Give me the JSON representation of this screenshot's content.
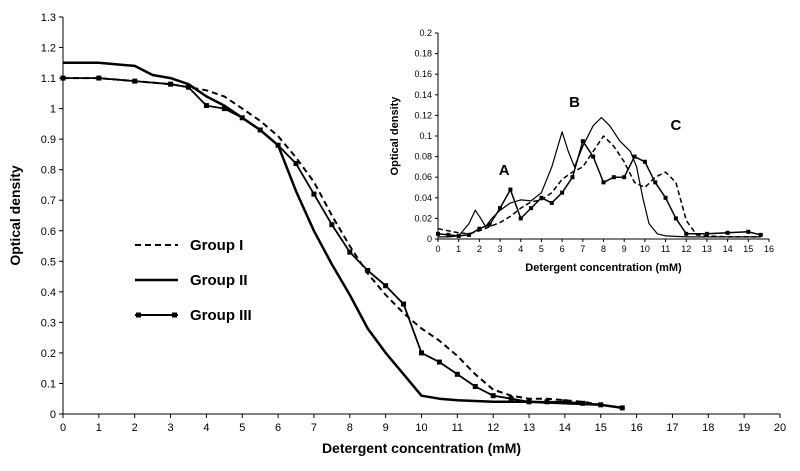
{
  "chart_data": [
    {
      "type": "line",
      "xlabel": "Detergent concentration (mM)",
      "ylabel": "Optical density",
      "xlim": [
        0,
        20
      ],
      "ylim": [
        0,
        1.3
      ],
      "x_ticks": [
        "0",
        "1",
        "2",
        "3",
        "4",
        "5",
        "6",
        "7",
        "8",
        "9",
        "10",
        "11",
        "12",
        "13",
        "14",
        "15",
        "16",
        "17",
        "18",
        "19",
        "20"
      ],
      "y_ticks": [
        "0",
        "0.1",
        "0.2",
        "0.3",
        "0.4",
        "0.5",
        "0.6",
        "0.7",
        "0.8",
        "0.9",
        "1",
        "1.1",
        "1.2",
        "1.3"
      ],
      "legend_position": "left-middle",
      "series": [
        {
          "name": "Group I",
          "style": "dashed",
          "color": "#000000",
          "x": [
            0,
            1,
            2,
            3,
            3.5,
            4,
            4.5,
            5,
            5.5,
            6,
            6.5,
            7,
            7.5,
            8,
            8.5,
            9,
            9.5,
            10,
            10.5,
            11,
            11.5,
            12,
            12.5,
            13,
            13.5,
            14,
            14.5,
            15,
            15.6
          ],
          "y": [
            1.1,
            1.1,
            1.09,
            1.08,
            1.07,
            1.06,
            1.04,
            1.0,
            0.96,
            0.91,
            0.84,
            0.76,
            0.65,
            0.55,
            0.46,
            0.39,
            0.33,
            0.28,
            0.24,
            0.19,
            0.13,
            0.08,
            0.06,
            0.05,
            0.05,
            0.045,
            0.04,
            0.03,
            0.02
          ]
        },
        {
          "name": "Group II",
          "style": "solid",
          "color": "#000000",
          "x": [
            0,
            1,
            2,
            2.5,
            3,
            3.5,
            4,
            4.5,
            5,
            5.5,
            6,
            6.5,
            7,
            7.5,
            8,
            8.5,
            9,
            9.5,
            10,
            10.5,
            11,
            12,
            13,
            14,
            15,
            15.6
          ],
          "y": [
            1.15,
            1.15,
            1.14,
            1.11,
            1.1,
            1.08,
            1.04,
            1.01,
            0.97,
            0.93,
            0.88,
            0.73,
            0.6,
            0.49,
            0.39,
            0.28,
            0.2,
            0.13,
            0.06,
            0.05,
            0.045,
            0.04,
            0.04,
            0.035,
            0.03,
            0.02
          ]
        },
        {
          "name": "Group III",
          "style": "solid-square-markers",
          "color": "#000000",
          "x": [
            0,
            1,
            2,
            3,
            3.5,
            4,
            4.5,
            5,
            5.5,
            6,
            6.5,
            7,
            7.5,
            8,
            8.5,
            9,
            9.5,
            10,
            10.5,
            11,
            11.5,
            12,
            12.5,
            13,
            13.5,
            14,
            14.5,
            15,
            15.6
          ],
          "y": [
            1.1,
            1.1,
            1.09,
            1.08,
            1.07,
            1.01,
            1.0,
            0.97,
            0.93,
            0.88,
            0.82,
            0.72,
            0.62,
            0.53,
            0.47,
            0.42,
            0.36,
            0.2,
            0.17,
            0.13,
            0.09,
            0.06,
            0.05,
            0.04,
            0.04,
            0.04,
            0.035,
            0.03,
            0.02
          ]
        }
      ]
    },
    {
      "type": "line",
      "xlabel": "Detergent concentration (mM)",
      "ylabel": "Optical density",
      "xlim": [
        0,
        16
      ],
      "ylim": [
        0,
        0.2
      ],
      "x_ticks": [
        "0",
        "1",
        "2",
        "3",
        "4",
        "5",
        "6",
        "7",
        "8",
        "9",
        "10",
        "11",
        "12",
        "13",
        "14",
        "15",
        "16"
      ],
      "y_ticks": [
        "0",
        "0.02",
        "0.04",
        "0.06",
        "0.08",
        "0.1",
        "0.12",
        "0.14",
        "0.16",
        "0.18",
        "0.2"
      ],
      "annotations": [
        {
          "text": "A",
          "x": 3.2,
          "y": 0.062
        },
        {
          "text": "B",
          "x": 6.6,
          "y": 0.128
        },
        {
          "text": "C",
          "x": 11.5,
          "y": 0.106
        }
      ],
      "series": [
        {
          "name": "Group I",
          "style": "dashed",
          "color": "#000000",
          "x": [
            0,
            0.5,
            1,
            1.5,
            2,
            2.5,
            3,
            3.5,
            4,
            4.5,
            5,
            5.5,
            6,
            6.5,
            7,
            7.5,
            8,
            8.5,
            9,
            9.5,
            10,
            10.5,
            11,
            11.5,
            12,
            12.5,
            13,
            14,
            15,
            15.6
          ],
          "y": [
            0.01,
            0.008,
            0.006,
            0.005,
            0.008,
            0.012,
            0.016,
            0.022,
            0.03,
            0.036,
            0.038,
            0.045,
            0.058,
            0.065,
            0.07,
            0.085,
            0.1,
            0.09,
            0.075,
            0.055,
            0.05,
            0.06,
            0.065,
            0.055,
            0.018,
            0.004,
            0.003,
            0.002,
            0.002,
            0.002
          ]
        },
        {
          "name": "Group II",
          "style": "solid",
          "color": "#000000",
          "x": [
            0,
            0.5,
            1,
            1.5,
            1.8,
            2,
            2.3,
            2.6,
            3,
            3.5,
            4,
            4.5,
            5,
            5.5,
            6,
            6.3,
            6.6,
            7,
            7.5,
            7.9,
            8.3,
            8.8,
            9.3,
            9.6,
            9.9,
            10.2,
            10.6,
            11,
            12,
            13,
            14,
            15,
            15.6
          ],
          "y": [
            0.002,
            0.002,
            0.003,
            0.015,
            0.028,
            0.022,
            0.012,
            0.02,
            0.028,
            0.035,
            0.038,
            0.037,
            0.045,
            0.07,
            0.104,
            0.085,
            0.07,
            0.09,
            0.11,
            0.118,
            0.11,
            0.095,
            0.085,
            0.07,
            0.04,
            0.015,
            0.005,
            0.003,
            0.002,
            0.002,
            0.002,
            0.002,
            0.002
          ]
        },
        {
          "name": "Group III",
          "style": "solid-square-markers",
          "color": "#000000",
          "x": [
            0,
            0.5,
            1,
            1.5,
            2,
            2.5,
            3,
            3.5,
            4,
            4.5,
            5,
            5.5,
            6,
            6.5,
            7,
            7.5,
            8,
            8.5,
            9,
            9.5,
            10,
            10.5,
            11,
            11.5,
            12,
            13,
            14,
            15,
            15.6
          ],
          "y": [
            0.005,
            0.004,
            0.003,
            0.004,
            0.01,
            0.014,
            0.03,
            0.048,
            0.02,
            0.03,
            0.04,
            0.035,
            0.045,
            0.06,
            0.095,
            0.08,
            0.055,
            0.06,
            0.06,
            0.08,
            0.075,
            0.055,
            0.04,
            0.02,
            0.005,
            0.005,
            0.006,
            0.007,
            0.004
          ]
        }
      ]
    }
  ]
}
